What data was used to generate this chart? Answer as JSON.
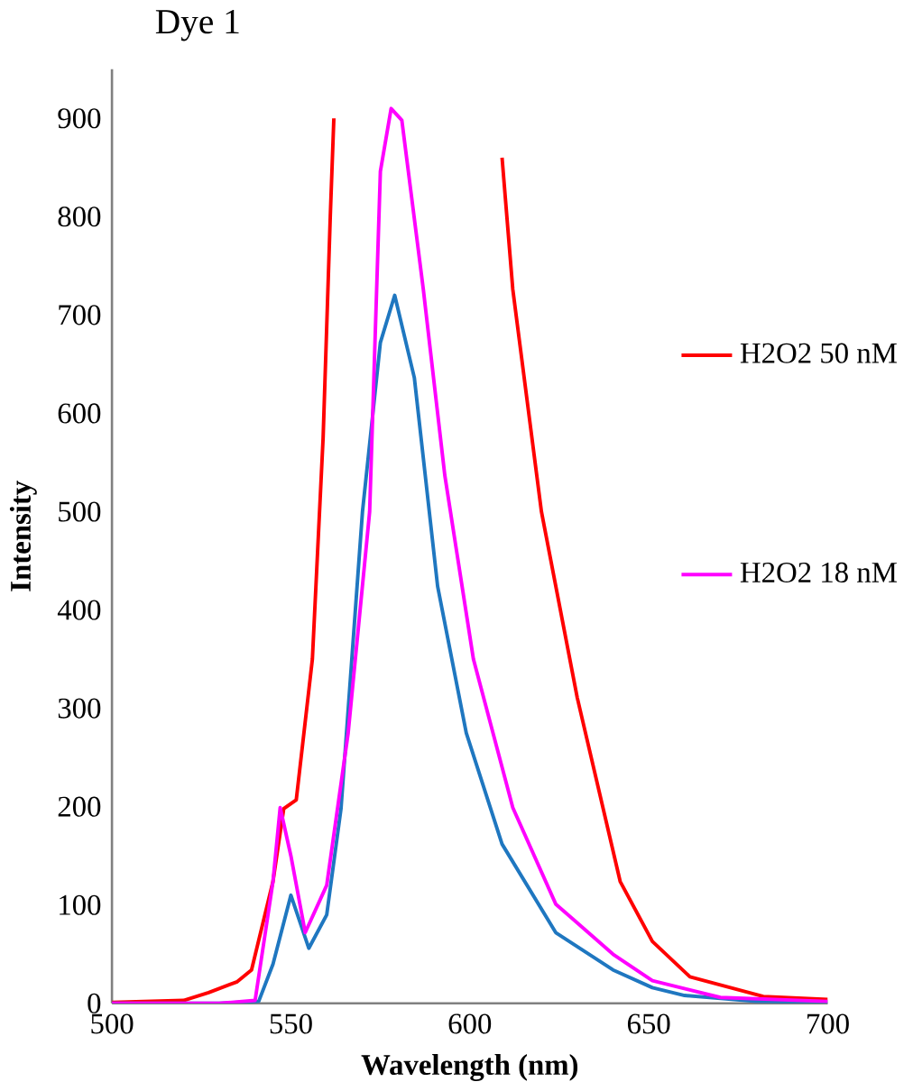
{
  "chart_data": {
    "type": "line",
    "title": "Dye 1",
    "xlabel": "Wavelength (nm)",
    "ylabel": "Intensity",
    "xlim": [
      500,
      700
    ],
    "ylim": [
      0,
      950
    ],
    "xticks": [
      500,
      550,
      600,
      650,
      700
    ],
    "yticks": [
      0,
      100,
      200,
      300,
      400,
      500,
      600,
      700,
      800,
      900
    ],
    "grid": false,
    "legend": "right",
    "marker": "none",
    "line_style": "solid",
    "series": [
      {
        "name": "H2O2 50 nM",
        "color": "#ff0000",
        "x": [
          500,
          520,
          527,
          535,
          539,
          545,
          548,
          551.5,
          556,
          559,
          561,
          562,
          585,
          609,
          612,
          620,
          630,
          642,
          651,
          661.5,
          682,
          700
        ],
        "values": [
          1,
          3,
          11,
          22,
          34,
          124,
          198,
          207,
          350,
          575,
          800,
          900,
          null,
          860,
          726,
          500,
          311,
          124,
          63,
          27,
          7,
          4
        ]
      },
      {
        "color": "#1f77c0",
        "x": [
          500,
          530,
          541,
          545,
          550,
          555,
          560,
          564,
          570,
          575,
          579,
          584.5,
          591,
          599,
          609,
          624,
          640,
          651,
          660,
          680,
          700
        ],
        "values": [
          0,
          0,
          2,
          40,
          110,
          56,
          90,
          198,
          500,
          672,
          720,
          636,
          424,
          275,
          162,
          72,
          34,
          16,
          8,
          2,
          1
        ]
      },
      {
        "name": "H2O2 18 nM",
        "color": "#ff00ff",
        "x": [
          500,
          530,
          540,
          545,
          547,
          550,
          554,
          560,
          566,
          572,
          575,
          578,
          581,
          587,
          593,
          601,
          612,
          624,
          640,
          651,
          670,
          700
        ],
        "values": [
          0,
          0,
          3,
          124,
          199,
          150,
          72,
          120,
          275,
          500,
          846,
          910,
          898,
          726,
          537,
          350,
          199,
          101,
          50,
          23,
          6,
          2
        ]
      }
    ]
  }
}
